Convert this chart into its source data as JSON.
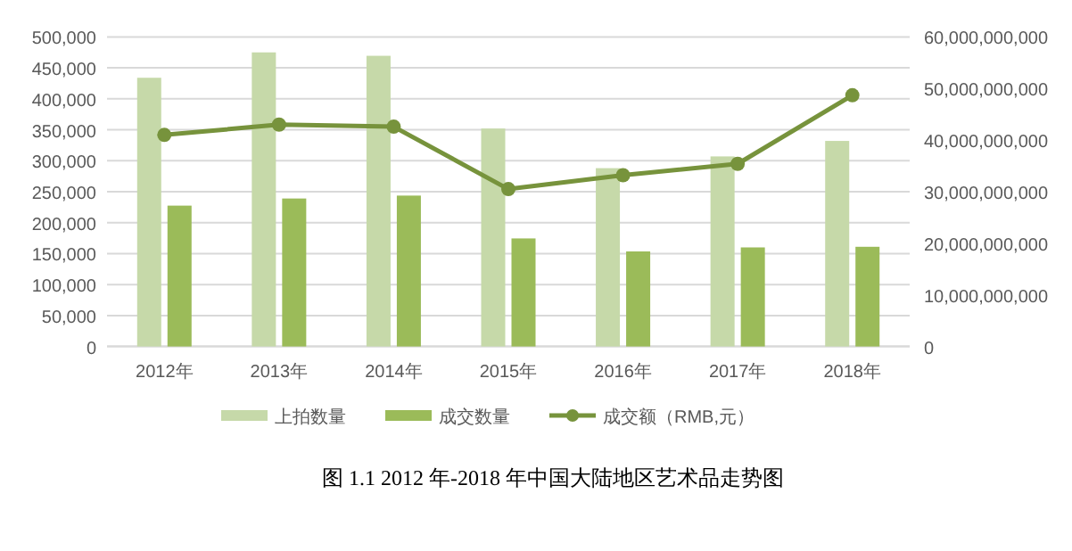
{
  "chart_data": {
    "type": "bar",
    "categories": [
      "2012年",
      "2013年",
      "2014年",
      "2015年",
      "2016年",
      "2017年",
      "2018年"
    ],
    "series": [
      {
        "name": "上拍数量",
        "color": "#c6d9a9",
        "values": [
          434000,
          475000,
          469500,
          352000,
          288000,
          307000,
          332000
        ]
      },
      {
        "name": "成交数量",
        "color": "#9bbb59",
        "values": [
          227500,
          239000,
          243700,
          174500,
          153500,
          160000,
          161000
        ]
      },
      {
        "name": "成交额（RMB,元）",
        "type": "line",
        "axis": "y2",
        "color": "#77933c",
        "marker": "circle",
        "values": [
          41000000000,
          43000000000,
          42600000000,
          30500000000,
          33200000000,
          35400000000,
          48700000000
        ]
      }
    ],
    "ylim": [
      0,
      500000
    ],
    "yticks": [
      {
        "value": 0,
        "label": "0"
      },
      {
        "value": 50000,
        "label": "50,000"
      },
      {
        "value": 100000,
        "label": "100,000"
      },
      {
        "value": 150000,
        "label": "150,000"
      },
      {
        "value": 200000,
        "label": "200,000"
      },
      {
        "value": 250000,
        "label": "250,000"
      },
      {
        "value": 300000,
        "label": "300,000"
      },
      {
        "value": 350000,
        "label": "350,000"
      },
      {
        "value": 400000,
        "label": "400,000"
      },
      {
        "value": 450000,
        "label": "450,000"
      },
      {
        "value": 500000,
        "label": "500,000"
      }
    ],
    "y2lim": [
      0,
      60000000000
    ],
    "y2ticks": [
      {
        "value": 0,
        "label": "0"
      },
      {
        "value": 10000000000,
        "label": "10,000,000,000"
      },
      {
        "value": 20000000000,
        "label": "20,000,000,000"
      },
      {
        "value": 30000000000,
        "label": "30,000,000,000"
      },
      {
        "value": 40000000000,
        "label": "40,000,000,000"
      },
      {
        "value": 50000000000,
        "label": "50,000,000,000"
      },
      {
        "value": 60000000000,
        "label": "60,000,000,000"
      }
    ],
    "grid": "y",
    "legend": "bottom",
    "annotations": [
      "图 1.1  2012 年-2018 年中国大陆地区艺术品走势图"
    ]
  }
}
